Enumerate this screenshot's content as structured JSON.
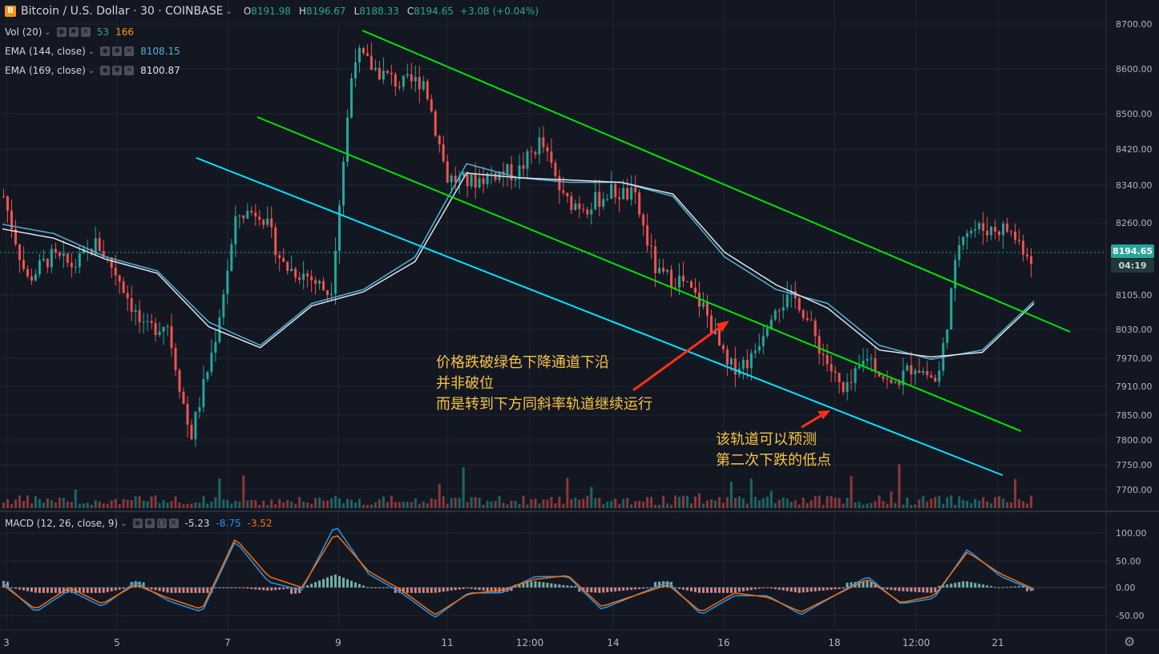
{
  "symbol": {
    "logo": "B",
    "name": "Bitcoin / U.S. Dollar",
    "interval": "30",
    "exchange": "COINBASE",
    "open_label": "O",
    "open": "8191.98",
    "high_label": "H",
    "high": "8196.67",
    "low_label": "L",
    "low": "8188.33",
    "close_label": "C",
    "close": "8194.65",
    "change": "+3.08 (+0.04%)"
  },
  "indicators": {
    "vol": {
      "name": "Vol (20)",
      "v1": "53",
      "v2": "166"
    },
    "ema144": {
      "name": "EMA (144, close)",
      "value": "8108.15"
    },
    "ema169": {
      "name": "EMA (169, close)",
      "value": "8100.87"
    },
    "macd": {
      "name": "MACD (12, 26, close, 9)",
      "hist": "-5.23",
      "macd": "-8.75",
      "signal": "-3.52"
    }
  },
  "price_axis": {
    "ticks": [
      "8700.00",
      "8600.00",
      "8500.00",
      "8420.00",
      "8340.00",
      "8260.00",
      "8105.00",
      "8030.00",
      "7970.00",
      "7910.00",
      "7850.00",
      "7800.00",
      "7750.00",
      "7700.00"
    ],
    "last_price": "8194.65",
    "countdown": "04:19"
  },
  "macd_axis": {
    "ticks": [
      "100.00",
      "50.00",
      "0.00",
      "-50.00"
    ]
  },
  "time_axis": {
    "ticks": [
      "3",
      "5",
      "7",
      "9",
      "11",
      "12:00",
      "14",
      "16",
      "18",
      "12:00",
      "21"
    ]
  },
  "annotations": {
    "note1": [
      "价格跌破绿色下降通道下沿",
      "并非破位",
      "而是转到下方同斜率轨道继续运行"
    ],
    "note2": [
      "该轨道可以预测",
      "第二次下跌的低点"
    ]
  },
  "colors": {
    "background": "#131722",
    "up": "#26a69a",
    "down": "#ef5350",
    "ema144": "#4fb3d9",
    "ema169": "#e0e3eb",
    "channel": "#00e600",
    "lower_channel": "#00e5ff",
    "annotation": "#f6c343",
    "arrow": "#ff2d1a",
    "macd_line": "#2196f3",
    "signal_line": "#ff6d00"
  },
  "chart_data": {
    "type": "candlestick",
    "x_ticks": [
      "3",
      "5",
      "7",
      "9",
      "11",
      "12:00",
      "14",
      "16",
      "18",
      "12:00",
      "21"
    ],
    "ylim": [
      7680,
      8720
    ],
    "price_path": [
      8330,
      8150,
      8200,
      8180,
      8230,
      8150,
      8040,
      8060,
      7810,
      8010,
      8290,
      8300,
      8180,
      8160,
      8120,
      8640,
      8600,
      8570,
      8580,
      8370,
      8360,
      8380,
      8380,
      8450,
      8320,
      8310,
      8340,
      8330,
      8160,
      8150,
      8090,
      7960,
      7980,
      8100,
      8110,
      8000,
      7900,
      7990,
      7920,
      7970,
      7930,
      8260,
      8260,
      8260,
      8200
    ],
    "ema144": [
      8270,
      8250,
      8200,
      8170,
      8060,
      8010,
      8100,
      8130,
      8200,
      8400,
      8370,
      8360,
      8360,
      8330,
      8200,
      8130,
      8100,
      8010,
      7980,
      8000,
      8105
    ],
    "ema169": [
      8260,
      8240,
      8195,
      8165,
      8050,
      8005,
      8095,
      8125,
      8190,
      8380,
      8370,
      8365,
      8360,
      8335,
      8210,
      8140,
      8090,
      8000,
      7985,
      7995,
      8100
    ],
    "channels": [
      {
        "name": "",
        "from": [
          "9",
          8690
        ],
        "to": [
          "21",
          8030
        ]
      },
      {
        "name": "",
        "from": [
          "7",
          8490
        ],
        "to": [
          "21",
          7830
        ]
      },
      {
        "name": "",
        "from": [
          "5",
          8380
        ],
        "to": [
          "21",
          7720
        ]
      }
    ],
    "macd_ylim": [
      -70,
      120
    ],
    "macd_path": [
      10,
      -45,
      -5,
      -35,
      10,
      -25,
      -45,
      85,
      10,
      -5,
      115,
      25,
      -10,
      -55,
      -10,
      -10,
      20,
      20,
      -40,
      -15,
      10,
      -50,
      -15,
      -15,
      -50,
      -15,
      20,
      -30,
      -20,
      70,
      20,
      -5
    ],
    "signal_path": [
      5,
      -40,
      0,
      -30,
      5,
      -20,
      -40,
      90,
      20,
      0,
      100,
      30,
      -5,
      -50,
      -12,
      -5,
      15,
      22,
      -35,
      -15,
      5,
      -45,
      -10,
      -18,
      -45,
      -15,
      15,
      -28,
      -15,
      65,
      25,
      -3
    ],
    "volume_max": 166
  }
}
